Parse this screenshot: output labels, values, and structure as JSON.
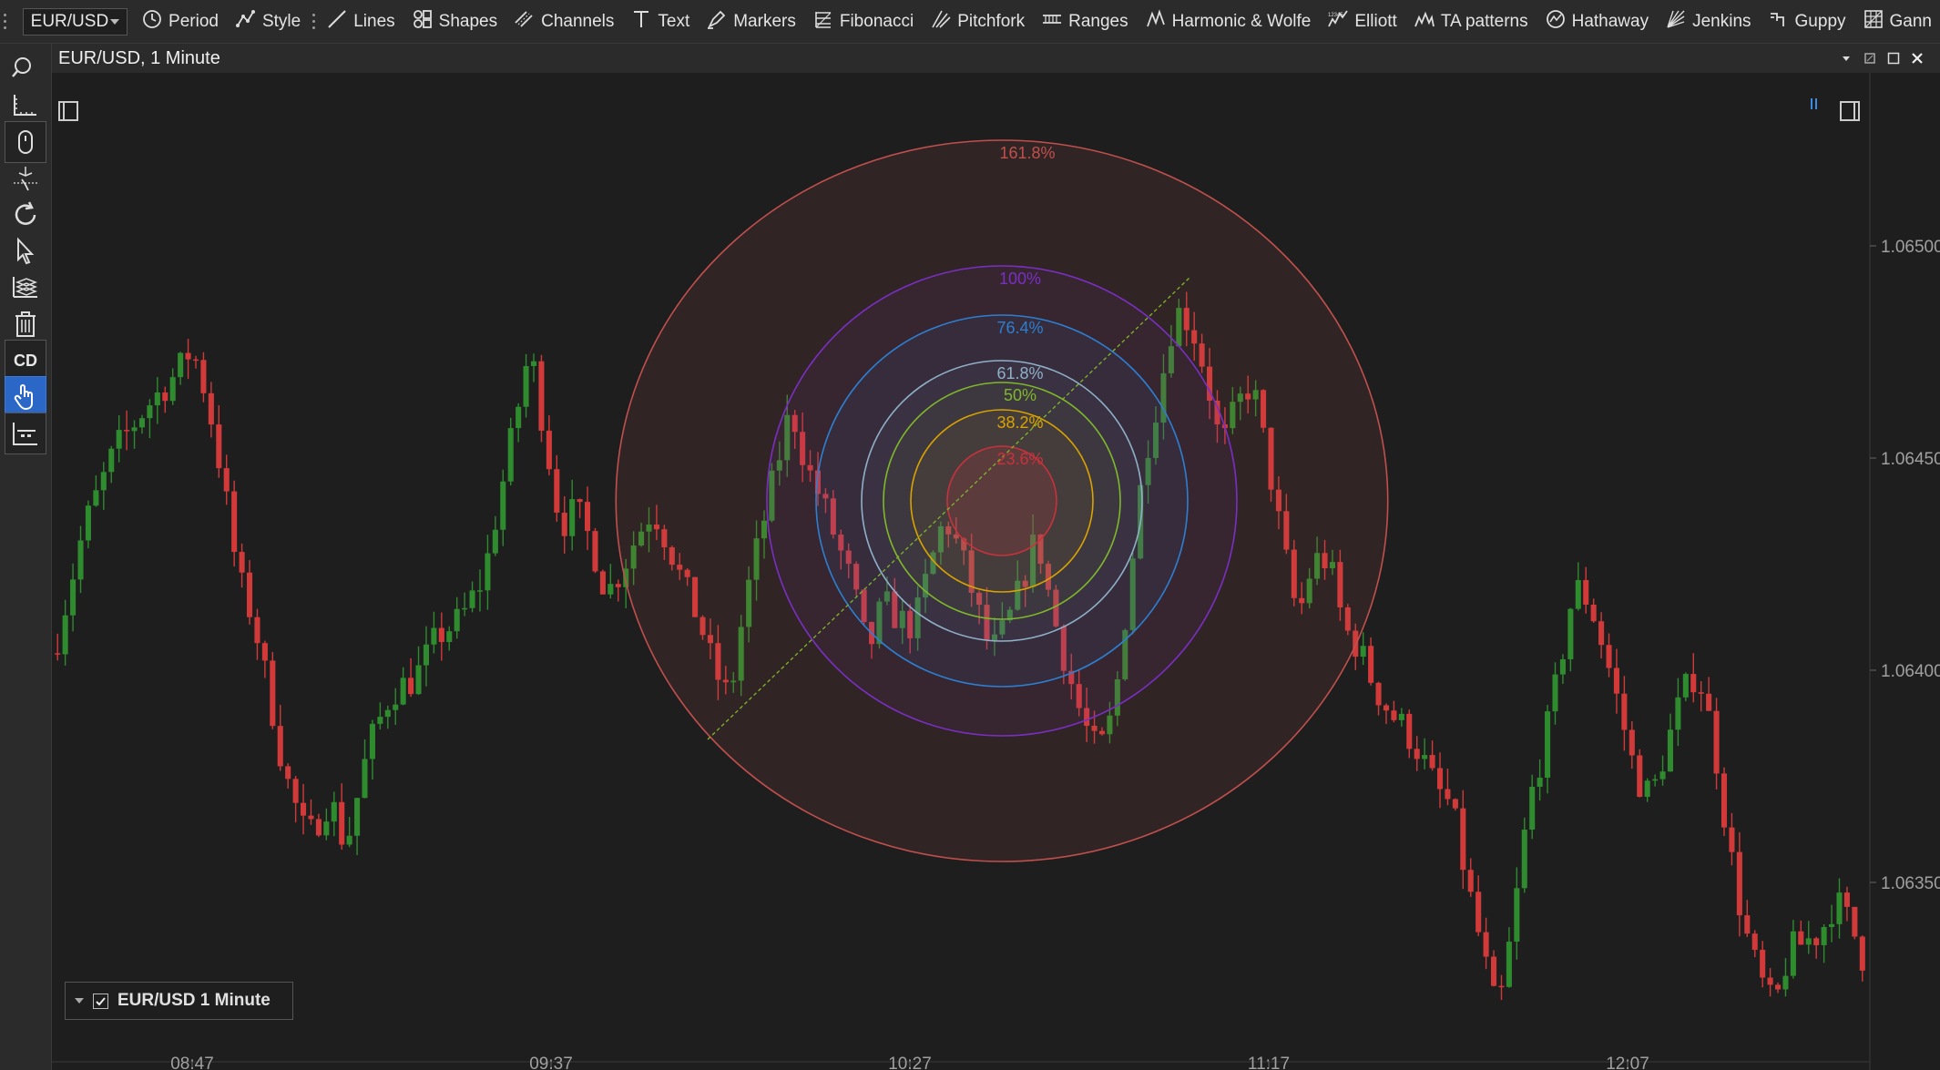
{
  "toolbar": {
    "symbol": "EUR/USD",
    "items": [
      {
        "label": "Period",
        "icon": "clock-icon"
      },
      {
        "label": "Style",
        "icon": "style-icon"
      },
      {
        "label": "Lines",
        "icon": "line-icon"
      },
      {
        "label": "Shapes",
        "icon": "shapes-icon"
      },
      {
        "label": "Channels",
        "icon": "channels-icon"
      },
      {
        "label": "Text",
        "icon": "text-icon"
      },
      {
        "label": "Markers",
        "icon": "marker-icon"
      },
      {
        "label": "Fibonacci",
        "icon": "fibonacci-icon"
      },
      {
        "label": "Pitchfork",
        "icon": "pitchfork-icon"
      },
      {
        "label": "Ranges",
        "icon": "ranges-icon"
      },
      {
        "label": "Harmonic & Wolfe",
        "icon": "harmonic-icon"
      },
      {
        "label": "Elliott",
        "icon": "elliott-icon"
      },
      {
        "label": "TA patterns",
        "icon": "ta-patterns-icon"
      },
      {
        "label": "Hathaway",
        "icon": "hathaway-icon"
      },
      {
        "label": "Jenkins",
        "icon": "jenkins-icon"
      },
      {
        "label": "Guppy",
        "icon": "guppy-icon"
      },
      {
        "label": "Gann",
        "icon": "gann-icon"
      }
    ]
  },
  "left_tools": [
    {
      "name": "search-icon"
    },
    {
      "name": "ruler-icon"
    },
    {
      "name": "mouse-icon"
    },
    {
      "name": "pan-icon"
    },
    {
      "name": "refresh-icon"
    },
    {
      "name": "cursor-icon"
    },
    {
      "name": "layers-icon"
    },
    {
      "name": "trash-icon"
    },
    {
      "name": "cd-button",
      "label": "CD"
    },
    {
      "name": "touch-icon",
      "active": true
    },
    {
      "name": "chart-settings-icon"
    }
  ],
  "chart": {
    "title": "EUR/USD, 1 Minute",
    "legend_label": "EUR/USD 1 Minute",
    "legend_checked": true,
    "colors": {
      "background": "#1e1e1f",
      "up": "#2e8b2e",
      "down": "#d23a3a",
      "axis_text": "#a0a0a0"
    }
  },
  "chart_data": {
    "type": "candlestick",
    "symbol": "EUR/USD",
    "interval": "1 Minute",
    "x_ticks": [
      "08:47",
      "09:37",
      "10:27",
      "11:17",
      "12:07"
    ],
    "y_ticks": [
      "1.06500",
      "1.06450",
      "1.06400",
      "1.06350"
    ],
    "ylim": [
      1.06305,
      1.06545
    ],
    "price_path": [
      [
        0,
        1.06404
      ],
      [
        4,
        1.06434
      ],
      [
        8,
        1.06452
      ],
      [
        12,
        1.06462
      ],
      [
        16,
        1.0647
      ],
      [
        18,
        1.06476
      ],
      [
        20,
        1.06464
      ],
      [
        22,
        1.06445
      ],
      [
        24,
        1.06422
      ],
      [
        26,
        1.06412
      ],
      [
        28,
        1.06395
      ],
      [
        30,
        1.06376
      ],
      [
        33,
        1.0636
      ],
      [
        36,
        1.0637
      ],
      [
        38,
        1.06358
      ],
      [
        41,
        1.06382
      ],
      [
        44,
        1.06395
      ],
      [
        47,
        1.06398
      ],
      [
        50,
        1.06408
      ],
      [
        53,
        1.06412
      ],
      [
        56,
        1.06422
      ],
      [
        58,
        1.0644
      ],
      [
        60,
        1.06458
      ],
      [
        62,
        1.06476
      ],
      [
        64,
        1.06455
      ],
      [
        66,
        1.06434
      ],
      [
        68,
        1.06438
      ],
      [
        70,
        1.0643
      ],
      [
        72,
        1.06418
      ],
      [
        74,
        1.06424
      ],
      [
        76,
        1.06432
      ],
      [
        78,
        1.06438
      ],
      [
        80,
        1.0643
      ],
      [
        82,
        1.0642
      ],
      [
        84,
        1.06412
      ],
      [
        86,
        1.064
      ],
      [
        88,
        1.06393
      ],
      [
        90,
        1.06416
      ],
      [
        92,
        1.06432
      ],
      [
        94,
        1.06447
      ],
      [
        96,
        1.06462
      ],
      [
        98,
        1.06448
      ],
      [
        100,
        1.0644
      ],
      [
        102,
        1.0643
      ],
      [
        104,
        1.0642
      ],
      [
        106,
        1.06404
      ],
      [
        108,
        1.06416
      ],
      [
        110,
        1.06412
      ],
      [
        112,
        1.0641
      ],
      [
        114,
        1.06424
      ],
      [
        116,
        1.06436
      ],
      [
        118,
        1.06428
      ],
      [
        120,
        1.06416
      ],
      [
        122,
        1.06404
      ],
      [
        124,
        1.0641
      ],
      [
        126,
        1.0642
      ],
      [
        128,
        1.06432
      ],
      [
        130,
        1.06414
      ],
      [
        132,
        1.064
      ],
      [
        134,
        1.06388
      ],
      [
        136,
        1.0638
      ],
      [
        138,
        1.0639
      ],
      [
        140,
        1.0642
      ],
      [
        142,
        1.0645
      ],
      [
        144,
        1.06466
      ],
      [
        146,
        1.06485
      ],
      [
        148,
        1.06482
      ],
      [
        150,
        1.0647
      ],
      [
        152,
        1.06452
      ],
      [
        154,
        1.06462
      ],
      [
        156,
        1.06468
      ],
      [
        158,
        1.0645
      ],
      [
        160,
        1.0643
      ],
      [
        162,
        1.06412
      ],
      [
        164,
        1.06426
      ],
      [
        166,
        1.06426
      ],
      [
        168,
        1.0641
      ],
      [
        170,
        1.06405
      ],
      [
        172,
        1.06396
      ],
      [
        174,
        1.0639
      ],
      [
        176,
        1.06386
      ],
      [
        178,
        1.0638
      ],
      [
        180,
        1.06372
      ],
      [
        182,
        1.06368
      ],
      [
        184,
        1.0635
      ],
      [
        186,
        1.06334
      ],
      [
        188,
        1.06318
      ],
      [
        190,
        1.0634
      ],
      [
        192,
        1.06368
      ],
      [
        194,
        1.06382
      ],
      [
        196,
        1.064
      ],
      [
        198,
        1.0642
      ],
      [
        200,
        1.06416
      ],
      [
        202,
        1.06404
      ],
      [
        204,
        1.0639
      ],
      [
        206,
        1.06375
      ],
      [
        208,
        1.0637
      ],
      [
        210,
        1.06382
      ],
      [
        212,
        1.06394
      ],
      [
        214,
        1.064
      ],
      [
        216,
        1.06385
      ],
      [
        218,
        1.0636
      ],
      [
        220,
        1.0634
      ],
      [
        222,
        1.06328
      ],
      [
        224,
        1.0632
      ],
      [
        226,
        1.06334
      ],
      [
        228,
        1.06336
      ],
      [
        230,
        1.06338
      ],
      [
        232,
        1.06346
      ],
      [
        234,
        1.0634
      ],
      [
        236,
        1.0633
      ]
    ],
    "annotation": {
      "type": "fibonacci-circles",
      "levels": [
        {
          "label": "23.6%",
          "color": "#c8323c"
        },
        {
          "label": "38.2%",
          "color": "#d9a300"
        },
        {
          "label": "50%",
          "color": "#7fb82a"
        },
        {
          "label": "61.8%",
          "color": "#8fb0c8"
        },
        {
          "label": "76.4%",
          "color": "#2d7fd1"
        },
        {
          "label": "100%",
          "color": "#7a2fc4"
        },
        {
          "label": "161.8%",
          "color": "#c0504d"
        }
      ]
    }
  }
}
